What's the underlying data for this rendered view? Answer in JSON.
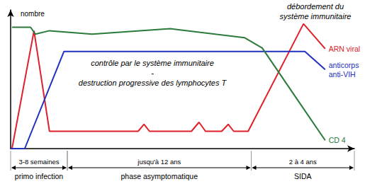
{
  "chart_data": {
    "type": "line",
    "y_label": "nombre",
    "xlim": [
      0,
      100
    ],
    "ylim": [
      0,
      100
    ],
    "grid": false,
    "tick_labels": false,
    "series": [
      {
        "name": "ARN viral",
        "color": "#e0202a",
        "x": [
          0.4,
          6.8,
          11.3,
          37.1,
          38.8,
          40.4,
          52.6,
          54.8,
          56.7,
          61.4,
          63.3,
          64.9,
          69.1,
          85.2,
          91.5
        ],
        "values": [
          0,
          85,
          12.5,
          12.5,
          17.5,
          12.5,
          12.5,
          19,
          12.5,
          12.5,
          17.5,
          12.5,
          12.5,
          90,
          72
        ]
      },
      {
        "name": "anticorps anti-VIH",
        "color": "#2030c0",
        "x": [
          0,
          4.1,
          15.5,
          85.6,
          91.5
        ],
        "values": [
          0,
          0,
          70,
          70,
          57
        ]
      },
      {
        "name": "CD 4",
        "color": "#2a7a3a",
        "x": [
          0.4,
          5.8,
          7.2,
          11.3,
          23.7,
          46.4,
          68,
          73.2,
          83.5,
          91.5
        ],
        "values": [
          87.5,
          87.5,
          82.5,
          85,
          82.5,
          86.5,
          80,
          72.5,
          35,
          6
        ]
      }
    ],
    "annotations": [
      [
        "contrôle par le système immunitaire",
        "-",
        "destruction progressive des lymphocytes T"
      ],
      [
        "débordement du",
        "système immunitaire"
      ]
    ],
    "phases": [
      {
        "duration": "3-8 semaines",
        "name": "primo infection",
        "start": 0,
        "end": 16.5
      },
      {
        "duration": "jusqu'à 12 ans",
        "name": "phase asymptomatique",
        "start": 16.5,
        "end": 70
      },
      {
        "duration": "2 à 4 ans",
        "name": "SIDA",
        "start": 70,
        "end": 100
      }
    ]
  }
}
